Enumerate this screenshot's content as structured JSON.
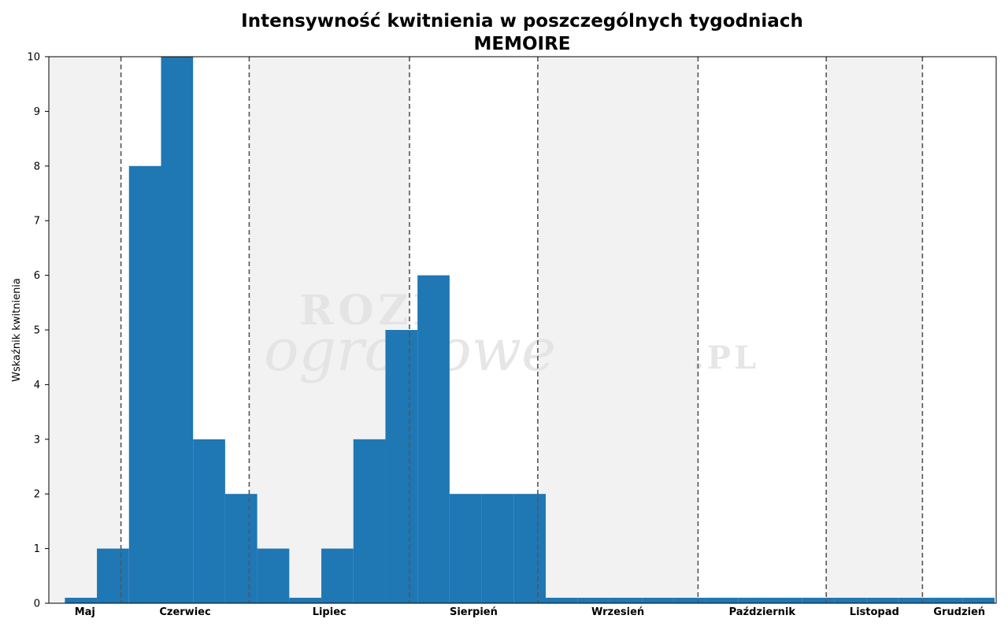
{
  "chart_data": {
    "type": "bar",
    "title": "Intensywność kwitnienia w poszczególnych tygodniach",
    "subtitle": "MEMOIRE",
    "ylabel": "Wskaźnik kwitnienia",
    "xlabel": "",
    "ylim": [
      0,
      10
    ],
    "yticks": [
      0,
      1,
      2,
      3,
      4,
      5,
      6,
      7,
      8,
      9,
      10
    ],
    "grid": false,
    "weeks": [
      1,
      2,
      3,
      4,
      5,
      6,
      7,
      8,
      9,
      10,
      11,
      12,
      13,
      14,
      15,
      16,
      17,
      18,
      19,
      20,
      21,
      22,
      23,
      24,
      25,
      26,
      27,
      28,
      29
    ],
    "values": [
      0.1,
      1,
      8,
      10,
      3,
      2,
      1,
      0.1,
      1,
      3,
      5,
      6,
      2,
      2,
      2,
      0.1,
      0.1,
      0.1,
      0.1,
      0.1,
      0.1,
      0.1,
      0.1,
      0.1,
      0.1,
      0.1,
      0.1,
      0.1,
      0.1
    ],
    "bar_color": "#1f77b4",
    "months": [
      {
        "label": "Maj",
        "start": 0,
        "end": 2.25,
        "shaded": true
      },
      {
        "label": "Czerwiec",
        "start": 2.25,
        "end": 6.25,
        "shaded": false
      },
      {
        "label": "Lipiec",
        "start": 6.25,
        "end": 11.25,
        "shaded": true
      },
      {
        "label": "Sierpień",
        "start": 11.25,
        "end": 15.25,
        "shaded": false
      },
      {
        "label": "Wrzesień",
        "start": 15.25,
        "end": 20.25,
        "shaded": true
      },
      {
        "label": "Październik",
        "start": 20.25,
        "end": 24.25,
        "shaded": false
      },
      {
        "label": "Listopad",
        "start": 24.25,
        "end": 27.25,
        "shaded": true
      },
      {
        "label": "Grudzień",
        "start": 27.25,
        "end": 29.55,
        "shaded": false
      }
    ],
    "xlim": [
      0,
      29.55
    ],
    "shade_color": "#f2f2f2",
    "divider_color": "#555555",
    "watermark": "ROZE ogrodowe .PL"
  }
}
